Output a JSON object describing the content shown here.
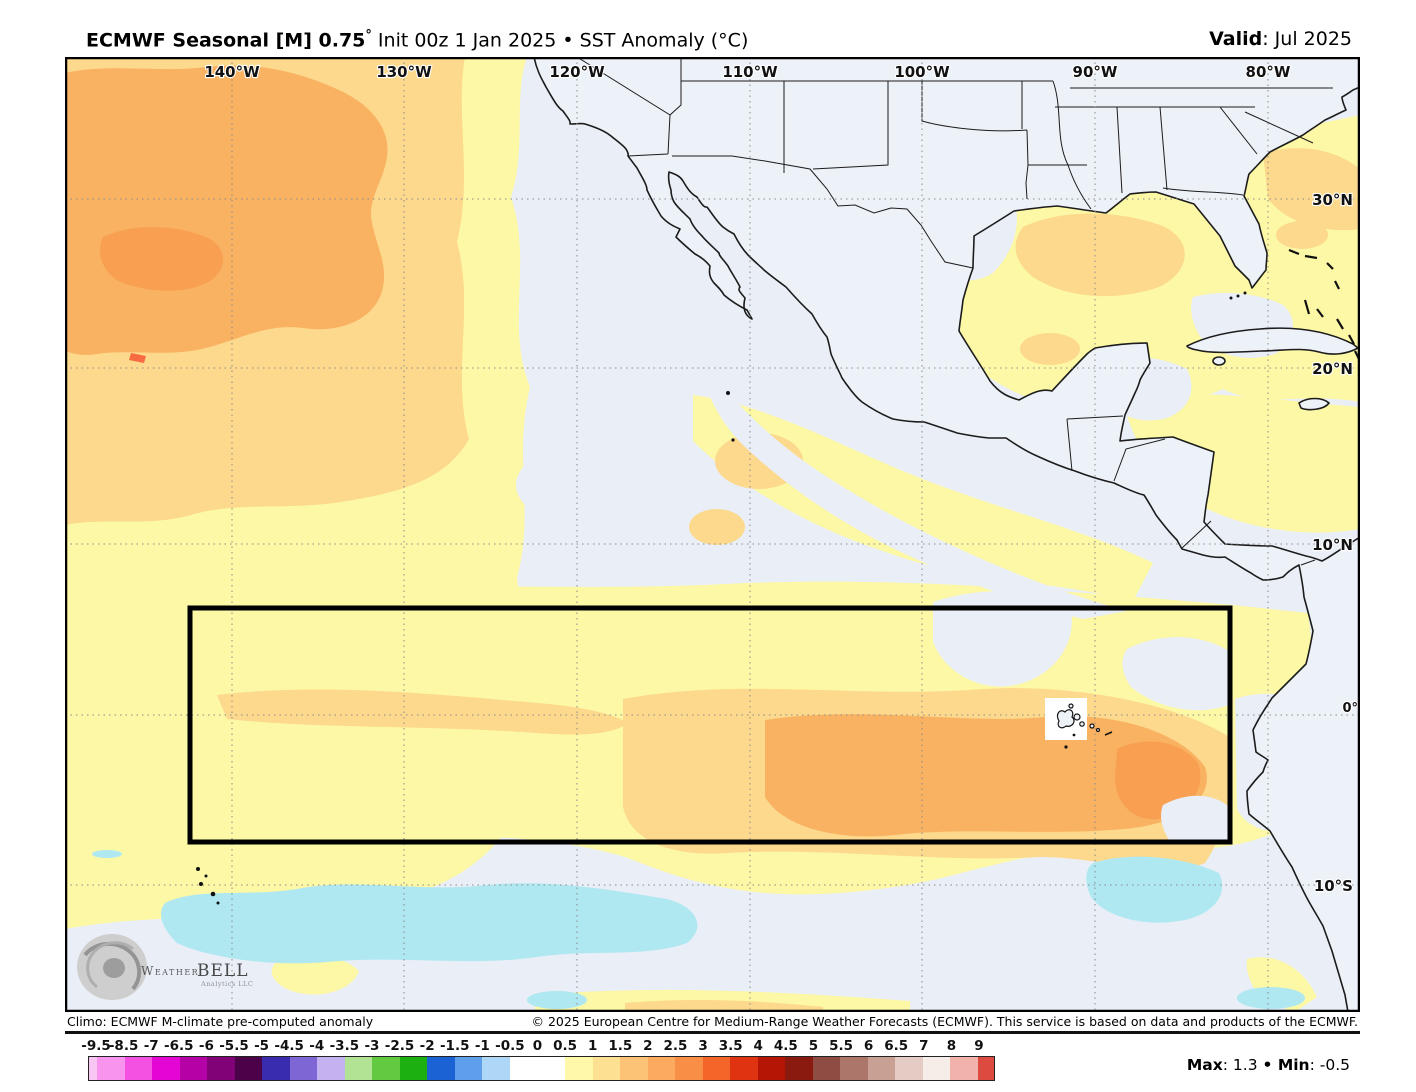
{
  "header": {
    "title_bold": "ECMWF Seasonal [M] 0.75",
    "title_degree": "°",
    "title_rest": " Init 00z 1 Jan 2025 • SST Anomaly (°C)",
    "valid_label": "Valid",
    "valid_value": ": Jul 2025"
  },
  "map": {
    "lon_labels": [
      "140°W",
      "130°W",
      "120°W",
      "110°W",
      "100°W",
      "90°W",
      "80°W"
    ],
    "lat_labels": [
      "30°N",
      "20°N",
      "10°N",
      "0°",
      "10°S"
    ]
  },
  "logo": {
    "part1": "Weather",
    "part2": "BELL",
    "sub": "Analytics LLC"
  },
  "footer": {
    "climo": "Climo: ECMWF M-climate pre-computed anomaly",
    "copyright": "© 2025 European Centre for Medium-Range Weather Forecasts (ECMWF). This service is based on data and products of the ECMWF."
  },
  "colorbar": {
    "ticks": [
      "-9.5",
      "-8.5",
      "-7",
      "-6.5",
      "-6",
      "-5.5",
      "-5",
      "-4.5",
      "-4",
      "-3.5",
      "-3",
      "-2.5",
      "-2",
      "-1.5",
      "-1",
      "-0.5",
      "0",
      "0.5",
      "1",
      "1.5",
      "2",
      "2.5",
      "3",
      "3.5",
      "4",
      "4.5",
      "5",
      "5.5",
      "6",
      "6.5",
      "7",
      "8",
      "9"
    ],
    "colors": [
      "#f9c6f4",
      "#f894ee",
      "#f450e2",
      "#e406d4",
      "#b402a6",
      "#800276",
      "#4c0248",
      "#3a2cae",
      "#7e66d4",
      "#c4b2f0",
      "#b2e294",
      "#62ca40",
      "#1cb010",
      "#1b62d4",
      "#5e9eea",
      "#aed6f6",
      "#ffffff",
      "#ffffff",
      "#fff8a9",
      "#fde092",
      "#fcc276",
      "#fbaa5f",
      "#f98e46",
      "#f4652a",
      "#e03312",
      "#b51504",
      "#8a1a10",
      "#8e4c42",
      "#ac766a",
      "#c8a094",
      "#e4ccc4",
      "#f6ece8",
      "#f2b2ac",
      "#dc4a40"
    ]
  },
  "stats": {
    "max_label": "Max",
    "max_value": ": 1.3 ",
    "separator": "• ",
    "min_label": "Min",
    "min_value": ": -0.5"
  },
  "chart_data": {
    "type": "heatmap",
    "title": "ECMWF Seasonal [M] 0.75° Init 00z 1 Jan 2025 • SST Anomaly (°C)",
    "valid": "Jul 2025",
    "units": "°C",
    "colorbar_ticks": [
      -9.5,
      -8.5,
      -7,
      -6.5,
      -6,
      -5.5,
      -5,
      -4.5,
      -4,
      -3.5,
      -3,
      -2.5,
      -2,
      -1.5,
      -1,
      -0.5,
      0,
      0.5,
      1,
      1.5,
      2,
      2.5,
      3,
      3.5,
      4,
      4.5,
      5,
      5.5,
      6,
      6.5,
      7,
      8,
      9
    ],
    "lon_gridlines_deg_w": [
      140,
      130,
      120,
      110,
      100,
      90,
      80
    ],
    "lat_gridlines_deg": [
      "30N",
      "20N",
      "10N",
      "0",
      "10S"
    ],
    "region_box": {
      "description": "black highlight rectangle over equatorial East Pacific",
      "approx_lon": "143W-82W",
      "approx_lat": "6N-7.5S"
    },
    "anomaly_summary": {
      "max": 1.3,
      "min": -0.5,
      "features": [
        "Broad +0.5 to +1.5 C warm anomaly across most of the NE Pacific",
        "Stronger +1 to +1.5 C warm pool in the far NW around 140-155W, 25-35N",
        "Warm +1 to +1.5 C band along the equator east of ~120W, peaking near the Galapagos",
        "Near-zero anomalies off California, along the SW Mexico coast and south of the equatorial box",
        "-0.5 to -1 C cool band near 10S between ~140W and 90W and a cool patch near 8S, 85W",
        "Gulf of Mexico and western Atlantic mildly warm (+0.5 to +1 C)"
      ]
    }
  }
}
